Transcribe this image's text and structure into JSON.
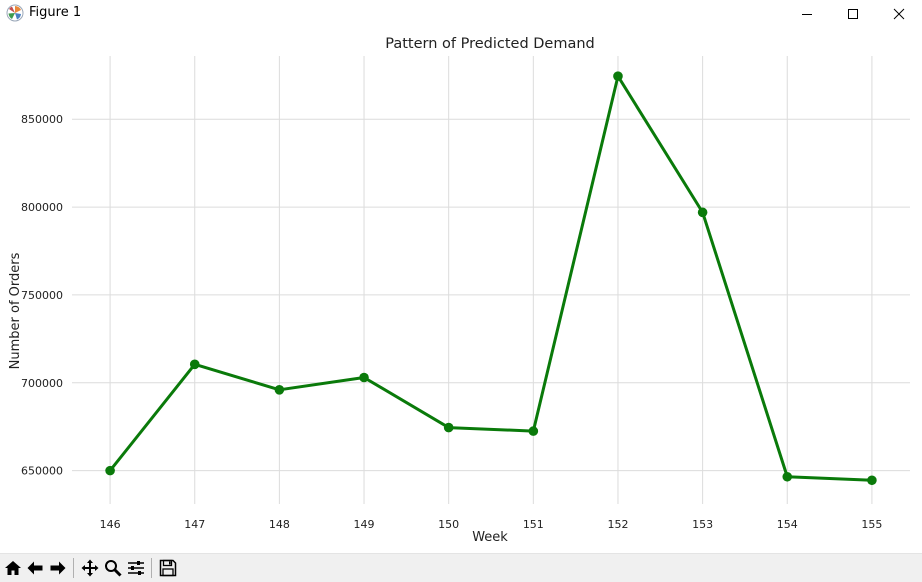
{
  "window": {
    "title": "Figure 1",
    "icon": "matplotlib-logo-icon",
    "controls": [
      "minimize-icon",
      "maximize-icon",
      "close-icon"
    ]
  },
  "toolbar": {
    "tools": [
      "home-icon",
      "back-arrow-icon",
      "forward-arrow-icon",
      "pan-icon",
      "zoom-icon",
      "configure-subplots-icon",
      "save-icon"
    ]
  },
  "colors": {
    "line": "#0a7a0a",
    "grid": "#dcdcdc",
    "toolbar_bg": "#f0f0f0"
  },
  "chart_data": {
    "type": "line",
    "title": "Pattern of Predicted Demand",
    "xlabel": "Week",
    "ylabel": "Number of Orders",
    "x": [
      146,
      147,
      148,
      149,
      150,
      151,
      152,
      153,
      154,
      155
    ],
    "xticks": [
      "146",
      "147",
      "148",
      "149",
      "150",
      "151",
      "152",
      "153",
      "154",
      "155"
    ],
    "yticks": [
      650000,
      700000,
      750000,
      800000,
      850000
    ],
    "ytick_labels": [
      "650000",
      "700000",
      "750000",
      "800000",
      "850000"
    ],
    "ylim": [
      631000,
      886000
    ],
    "xlim": [
      145.55,
      155.45
    ],
    "grid": true,
    "markers": true,
    "series": [
      {
        "values": [
          650000,
          710500,
          696000,
          703000,
          674500,
          672500,
          874500,
          797000,
          646500,
          644500
        ]
      }
    ]
  }
}
